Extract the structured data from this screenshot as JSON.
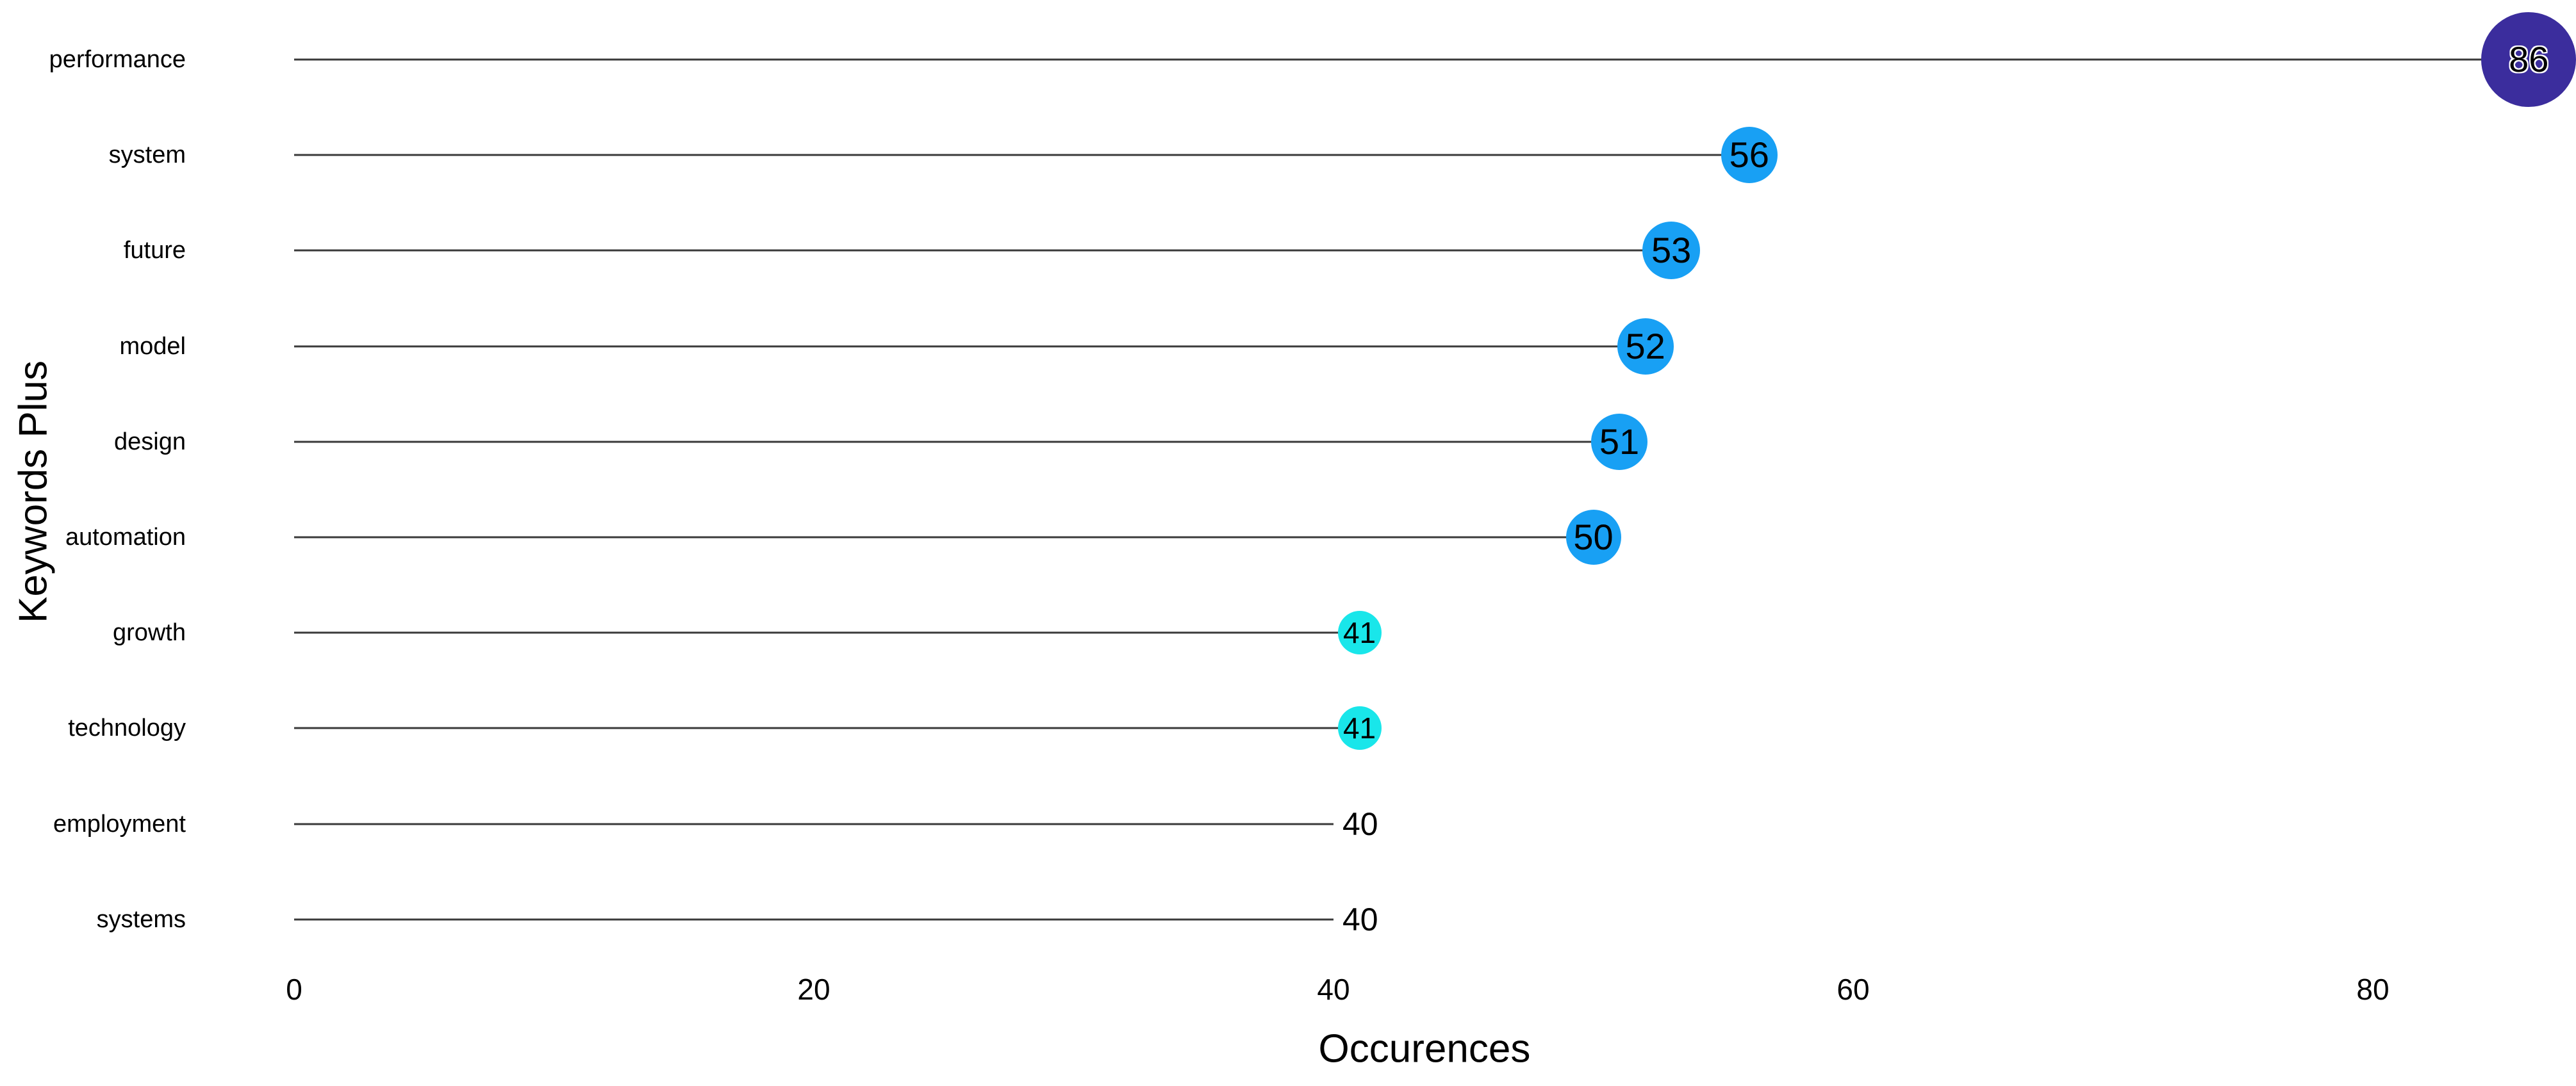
{
  "chart_data": {
    "type": "scatter",
    "variant": "horizontal-lollipop",
    "title": "",
    "xlabel": "Occurences",
    "ylabel": "Keywords Plus",
    "xlim": [
      0,
      88
    ],
    "x_ticks": [
      0,
      20,
      40,
      60,
      80
    ],
    "grid": false,
    "legend": "none",
    "stem_color": "#3a3a3a",
    "background_color": "#ffffff",
    "categories": [
      "performance",
      "system",
      "future",
      "model",
      "design",
      "automation",
      "growth",
      "technology",
      "employment",
      "systems"
    ],
    "values": [
      86,
      56,
      53,
      52,
      51,
      50,
      41,
      41,
      40,
      40
    ],
    "points": [
      {
        "label": "performance",
        "value": 86,
        "dot_color": "#3b2d9d",
        "dot_radius": 74,
        "label_halo": true
      },
      {
        "label": "system",
        "value": 56,
        "dot_color": "#18a0f4",
        "dot_radius": 44,
        "label_halo": false
      },
      {
        "label": "future",
        "value": 53,
        "dot_color": "#18a0f4",
        "dot_radius": 45,
        "label_halo": false
      },
      {
        "label": "model",
        "value": 52,
        "dot_color": "#18a0f4",
        "dot_radius": 44,
        "label_halo": false
      },
      {
        "label": "design",
        "value": 51,
        "dot_color": "#18a0f4",
        "dot_radius": 44,
        "label_halo": false
      },
      {
        "label": "automation",
        "value": 50,
        "dot_color": "#18a0f4",
        "dot_radius": 43,
        "label_halo": false
      },
      {
        "label": "growth",
        "value": 41,
        "dot_color": "#19e6ea",
        "dot_radius": 34,
        "label_halo": false
      },
      {
        "label": "technology",
        "value": 41,
        "dot_color": "#19e6ea",
        "dot_radius": 34,
        "label_halo": false
      },
      {
        "label": "employment",
        "value": 40,
        "dot_color": null,
        "dot_radius": 0,
        "label_halo": false
      },
      {
        "label": "systems",
        "value": 40,
        "dot_color": null,
        "dot_radius": 0,
        "label_halo": false
      }
    ]
  }
}
